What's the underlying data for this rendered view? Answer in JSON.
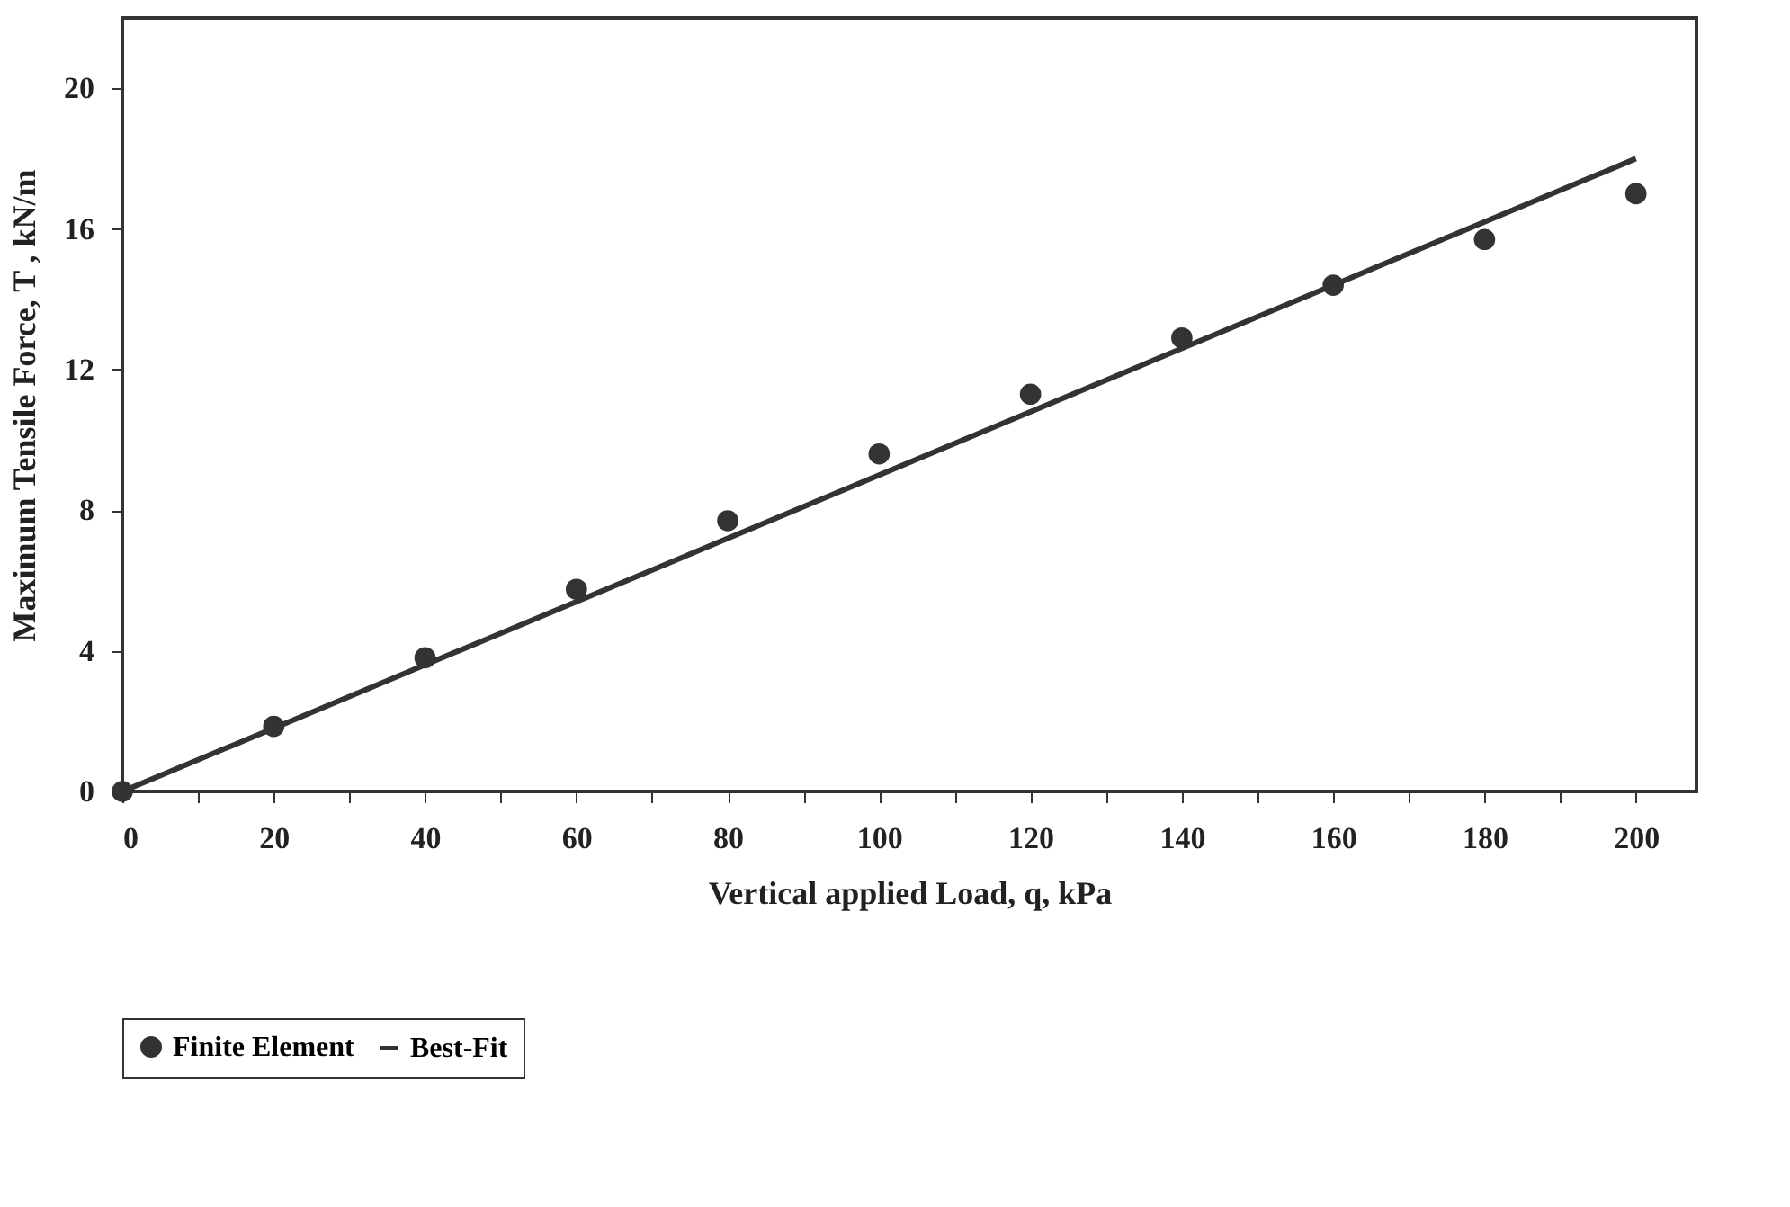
{
  "chart_data": {
    "type": "scatter",
    "xlabel": "Vertical applied Load, q, kPa",
    "ylabel": "Maximum Tensile Force, T , kN/m",
    "xlim": [
      0,
      208
    ],
    "ylim": [
      0,
      22
    ],
    "xticks": [
      0,
      {
        "value": 10,
        "label": null
      },
      20,
      {
        "value": 30,
        "label": null
      },
      40,
      {
        "value": 50,
        "label": null
      },
      60,
      {
        "value": 70,
        "label": null
      },
      80,
      {
        "value": 90,
        "label": null
      },
      100,
      {
        "value": 110,
        "label": null
      },
      120,
      {
        "value": 130,
        "label": null
      },
      140,
      {
        "value": 150,
        "label": null
      },
      160,
      {
        "value": 170,
        "label": null
      },
      180,
      {
        "value": 190,
        "label": null
      },
      200
    ],
    "yticks": [
      0,
      4,
      8,
      12,
      16,
      20
    ],
    "x": [
      0,
      20,
      40,
      60,
      80,
      100,
      120,
      140,
      160,
      180,
      200
    ],
    "series": [
      {
        "name": "Finite Element",
        "color": "#333333",
        "marker": "circle",
        "values": [
          0,
          1.85,
          3.8,
          5.75,
          7.7,
          9.6,
          11.3,
          12.9,
          14.4,
          15.7,
          17.0
        ]
      },
      {
        "name": "Best-Fit",
        "type": "line",
        "color": "#333333",
        "line_style": "solid",
        "x": [
          0,
          200
        ],
        "values": [
          0,
          18
        ]
      }
    ],
    "grid": false,
    "legend": "bottom"
  }
}
